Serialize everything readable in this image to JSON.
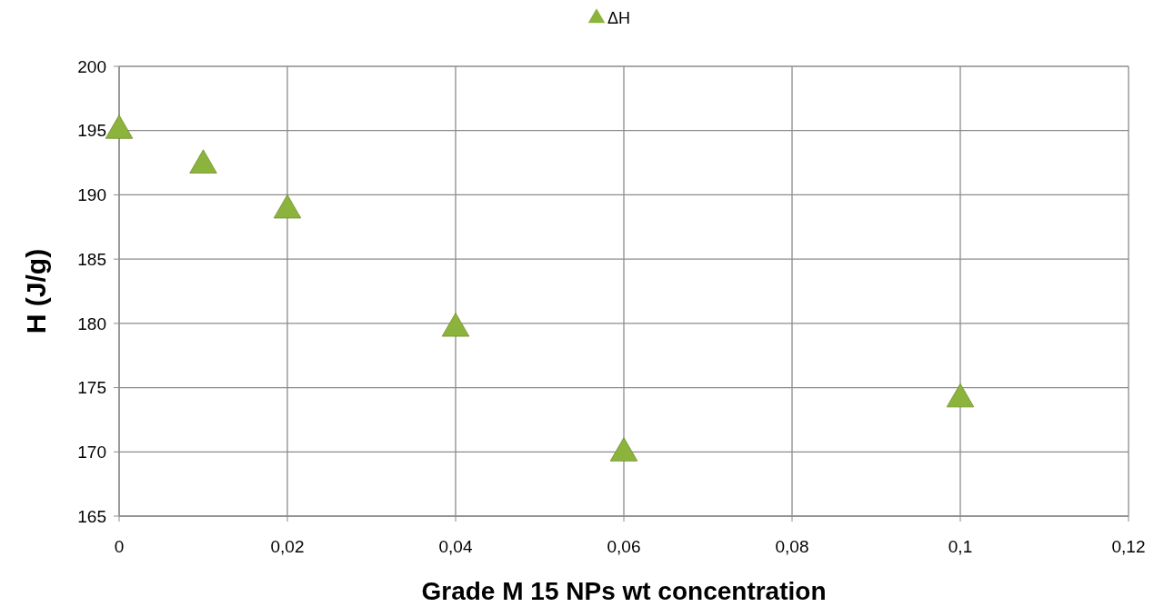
{
  "chart_data": {
    "type": "scatter",
    "xlabel": "Grade M 15 NPs wt concentration",
    "ylabel": "H (J/g)",
    "x": [
      0,
      0.01,
      0.02,
      0.04,
      0.06,
      0.1
    ],
    "series": [
      {
        "name": "ΔH",
        "color": "#8cb33c",
        "values": [
          195,
          192.3,
          188.8,
          179.6,
          169.9,
          174.1
        ]
      }
    ],
    "xlim": [
      0,
      0.12
    ],
    "xticks": [
      0,
      {
        "value": 0.02,
        "label": "0,02"
      },
      {
        "value": 0.04,
        "label": "0,04"
      },
      {
        "value": 0.06,
        "label": "0,06"
      },
      {
        "value": 0.08,
        "label": "0,08"
      },
      {
        "value": 0.1,
        "label": "0,1"
      },
      {
        "value": 0.12,
        "label": "0,12"
      }
    ],
    "ylim": [
      165,
      200
    ],
    "yticks": [
      165,
      170,
      175,
      180,
      185,
      190,
      195,
      200
    ],
    "grid": true,
    "legend": "top",
    "marker": "triangle"
  }
}
